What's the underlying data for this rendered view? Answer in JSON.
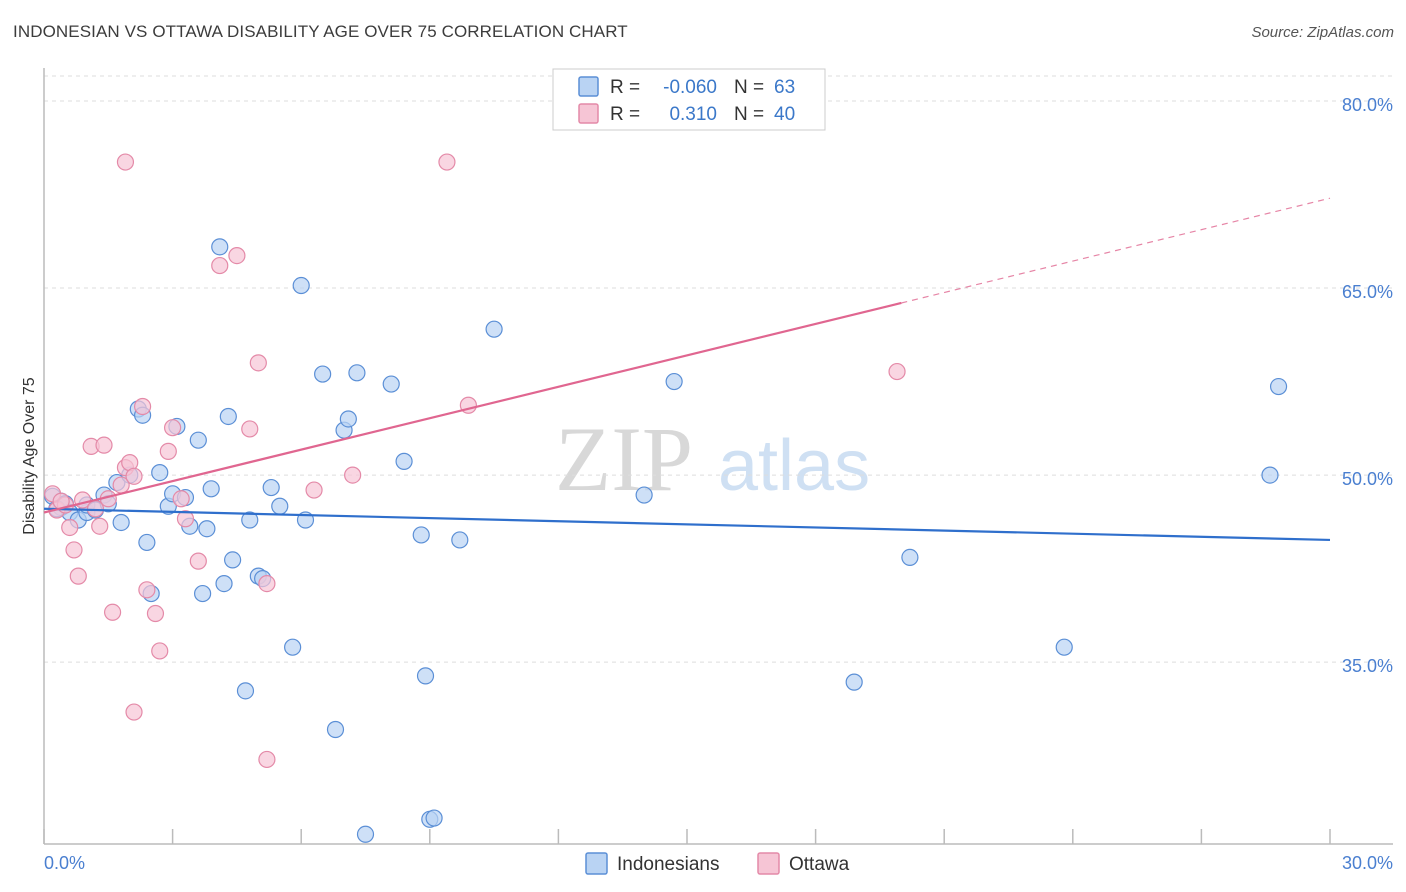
{
  "header": {
    "title": "INDONESIAN VS OTTAWA DISABILITY AGE OVER 75 CORRELATION CHART",
    "source": "Source: ZipAtlas.com"
  },
  "watermark": {
    "zip": "ZIP",
    "atlas": "atlas"
  },
  "colors": {
    "indonesians_fill": "#b9d3f3",
    "indonesians_stroke": "#5b8fd6",
    "indonesians_line": "#2f6fcc",
    "ottawa_fill": "#f6c5d5",
    "ottawa_stroke": "#e48aa8",
    "ottawa_line": "#e06690",
    "grid": "#dddddd",
    "tick_label": "#4a7fd0"
  },
  "legend": {
    "rows": [
      {
        "r_label": "R =",
        "r_value": "-0.060",
        "n_label": "N =",
        "n_value": "63"
      },
      {
        "r_label": "R =",
        "r_value": "0.310",
        "n_label": "N =",
        "n_value": "40"
      }
    ]
  },
  "bottom_legend": {
    "series1": "Indonesians",
    "series2": "Ottawa"
  },
  "chart_data": {
    "type": "scatter",
    "title": "INDONESIAN VS OTTAWA DISABILITY AGE OVER 75 CORRELATION CHART",
    "xlabel": "",
    "ylabel": "Disability Age Over 75",
    "xlim": [
      0,
      30
    ],
    "ylim": [
      20.5,
      82
    ],
    "x_tick_labels": [
      "0.0%",
      "30.0%"
    ],
    "y_ticks": [
      35,
      50,
      65,
      80
    ],
    "y_tick_labels": [
      "35.0%",
      "50.0%",
      "65.0%",
      "80.0%"
    ],
    "series": [
      {
        "name": "Indonesians",
        "r": -0.06,
        "n": 63,
        "trend": {
          "x0": 0,
          "y0": 47.3,
          "x1": 30,
          "y1": 44.8
        },
        "points": [
          [
            0.2,
            48.3
          ],
          [
            0.4,
            47.4
          ],
          [
            0.4,
            47.9
          ],
          [
            0.5,
            47.7
          ],
          [
            0.6,
            47.0
          ],
          [
            0.8,
            46.4
          ],
          [
            1.0,
            47.0
          ],
          [
            1.0,
            47.6
          ],
          [
            1.2,
            47.2
          ],
          [
            1.4,
            48.4
          ],
          [
            1.5,
            47.7
          ],
          [
            1.7,
            49.4
          ],
          [
            1.8,
            46.2
          ],
          [
            2.0,
            50.0
          ],
          [
            2.2,
            55.3
          ],
          [
            2.3,
            54.8
          ],
          [
            2.4,
            44.6
          ],
          [
            2.5,
            40.5
          ],
          [
            2.7,
            50.2
          ],
          [
            2.9,
            47.5
          ],
          [
            3.0,
            48.5
          ],
          [
            3.1,
            53.9
          ],
          [
            3.3,
            48.2
          ],
          [
            3.4,
            45.9
          ],
          [
            3.6,
            52.8
          ],
          [
            3.7,
            40.5
          ],
          [
            3.8,
            45.7
          ],
          [
            3.9,
            48.9
          ],
          [
            4.1,
            68.3
          ],
          [
            4.2,
            41.3
          ],
          [
            4.3,
            54.7
          ],
          [
            4.4,
            43.2
          ],
          [
            4.7,
            32.7
          ],
          [
            4.8,
            46.4
          ],
          [
            5.0,
            41.9
          ],
          [
            5.1,
            41.7
          ],
          [
            5.3,
            49.0
          ],
          [
            5.5,
            47.5
          ],
          [
            5.8,
            36.2
          ],
          [
            6.0,
            65.2
          ],
          [
            6.1,
            46.4
          ],
          [
            6.5,
            58.1
          ],
          [
            6.8,
            29.6
          ],
          [
            7.0,
            53.6
          ],
          [
            7.1,
            54.5
          ],
          [
            7.3,
            58.2
          ],
          [
            7.5,
            21.2
          ],
          [
            8.1,
            57.3
          ],
          [
            8.4,
            51.1
          ],
          [
            8.8,
            45.2
          ],
          [
            9.0,
            22.4
          ],
          [
            9.1,
            22.5
          ],
          [
            8.9,
            33.9
          ],
          [
            9.7,
            44.8
          ],
          [
            10.5,
            61.7
          ],
          [
            14.0,
            48.4
          ],
          [
            14.7,
            57.5
          ],
          [
            18.9,
            33.4
          ],
          [
            20.2,
            43.4
          ],
          [
            23.8,
            36.2
          ],
          [
            28.6,
            50.0
          ],
          [
            28.8,
            57.1
          ],
          [
            0.3,
            47.3
          ]
        ]
      },
      {
        "name": "Ottawa",
        "r": 0.31,
        "n": 40,
        "trend": {
          "x0": 0,
          "y0": 47.0,
          "x1": 20.0,
          "y1": 63.8,
          "dash_x1": 30,
          "dash_y1": 72.2
        },
        "points": [
          [
            0.2,
            48.5
          ],
          [
            0.3,
            47.2
          ],
          [
            0.5,
            47.6
          ],
          [
            0.6,
            45.8
          ],
          [
            0.7,
            44.0
          ],
          [
            0.8,
            41.9
          ],
          [
            0.9,
            48.0
          ],
          [
            1.1,
            52.3
          ],
          [
            1.2,
            47.3
          ],
          [
            1.3,
            45.9
          ],
          [
            1.4,
            52.4
          ],
          [
            1.5,
            48.1
          ],
          [
            1.6,
            39.0
          ],
          [
            1.8,
            49.2
          ],
          [
            1.9,
            50.6
          ],
          [
            2.0,
            51.0
          ],
          [
            2.1,
            49.9
          ],
          [
            1.9,
            75.1
          ],
          [
            2.1,
            31.0
          ],
          [
            2.3,
            55.5
          ],
          [
            2.4,
            40.8
          ],
          [
            2.6,
            38.9
          ],
          [
            2.7,
            35.9
          ],
          [
            2.9,
            51.9
          ],
          [
            3.0,
            53.8
          ],
          [
            3.2,
            48.1
          ],
          [
            3.3,
            46.5
          ],
          [
            3.6,
            43.1
          ],
          [
            4.1,
            66.8
          ],
          [
            4.5,
            67.6
          ],
          [
            4.8,
            53.7
          ],
          [
            5.0,
            59.0
          ],
          [
            5.2,
            27.2
          ],
          [
            5.2,
            41.3
          ],
          [
            6.3,
            48.8
          ],
          [
            7.2,
            50.0
          ],
          [
            9.4,
            75.1
          ],
          [
            9.9,
            55.6
          ],
          [
            19.9,
            58.3
          ],
          [
            0.4,
            47.9
          ]
        ]
      }
    ]
  }
}
